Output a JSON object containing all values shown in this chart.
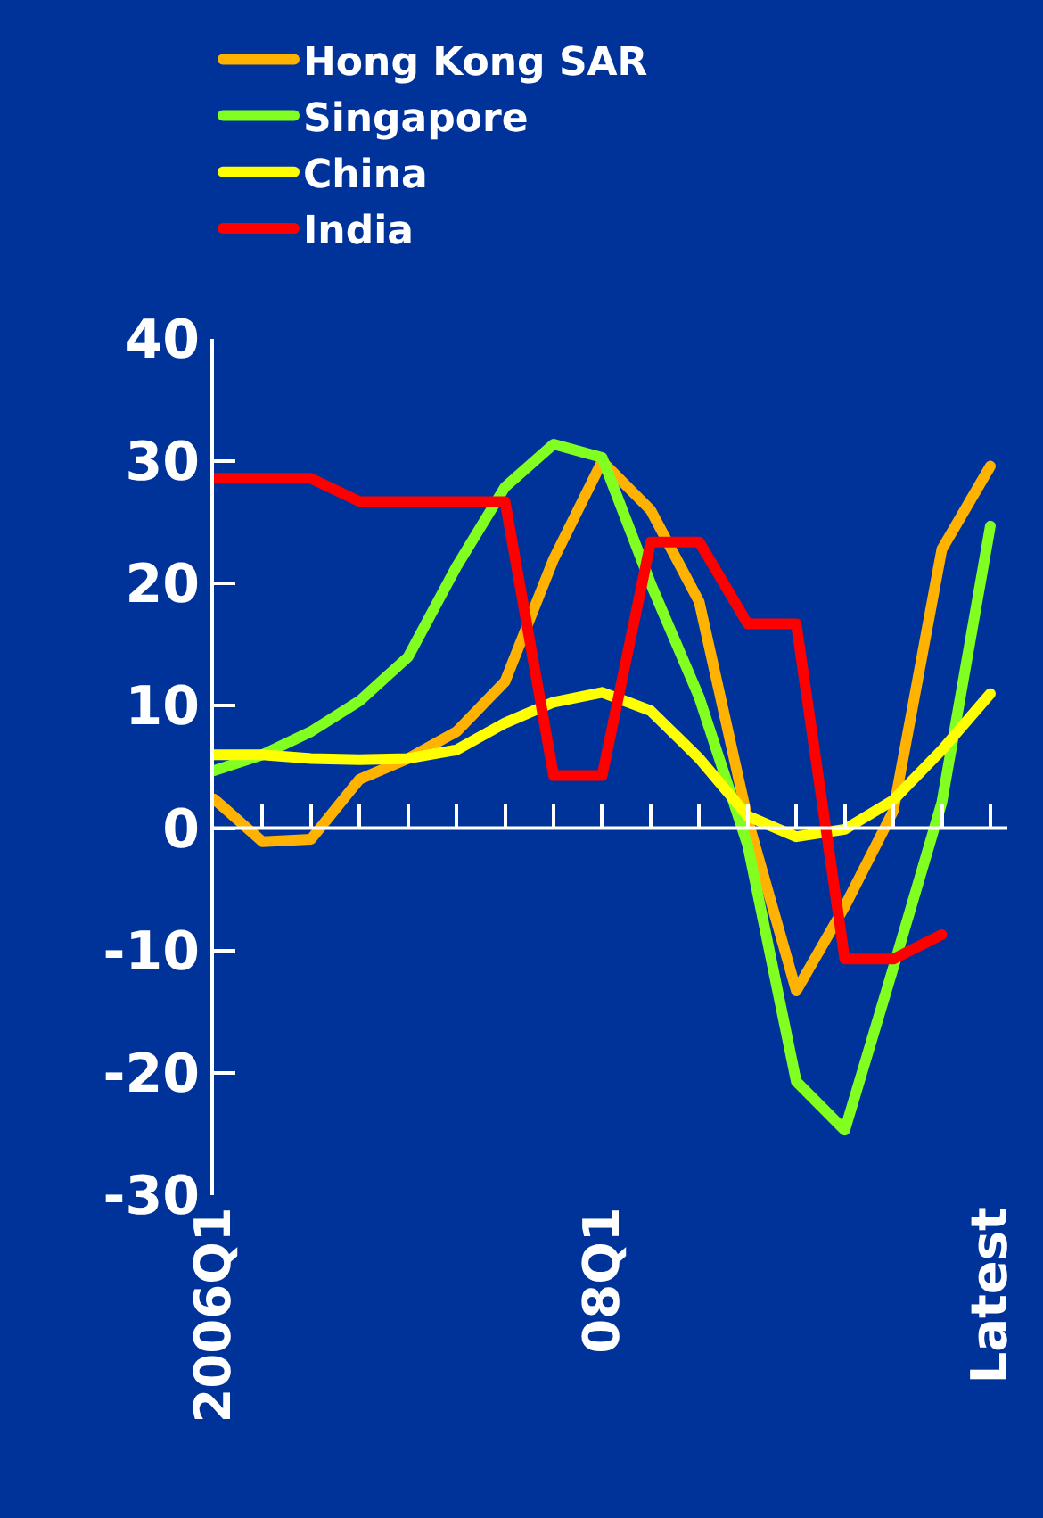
{
  "chart_data": {
    "type": "line",
    "categories": [
      "2006Q1",
      null,
      null,
      null,
      null,
      null,
      null,
      null,
      "08Q1",
      null,
      null,
      null,
      null,
      null,
      null,
      null,
      "Latest"
    ],
    "series": [
      {
        "name": "Hong Kong SAR",
        "color": "#ffb300",
        "values": [
          2.4,
          -1.1,
          -0.9,
          4,
          5.7,
          7.9,
          12,
          22,
          30,
          26,
          18.5,
          0.7,
          -13.3,
          -6.4,
          1.4,
          22.8,
          29.6
        ]
      },
      {
        "name": "Singapore",
        "color": "#80ff20",
        "values": [
          4.7,
          6,
          7.9,
          10.4,
          14,
          21.4,
          27.9,
          31.4,
          30.3,
          20,
          10.7,
          -1.4,
          -20.7,
          -24.7,
          -11.4,
          2.1,
          24.7
        ]
      },
      {
        "name": "China",
        "color": "#ffff00",
        "values": [
          6,
          6,
          5.7,
          5.6,
          5.7,
          6.4,
          8.6,
          10.3,
          11.1,
          9.6,
          5.7,
          1,
          -0.7,
          -0.1,
          2.3,
          6.4,
          11
        ]
      },
      {
        "name": "India",
        "color": "#ff0000",
        "values": [
          28.6,
          28.6,
          28.6,
          26.7,
          26.7,
          26.7,
          26.7,
          4.3,
          4.3,
          23.4,
          23.4,
          16.7,
          16.7,
          -10.7,
          -10.7,
          -8.7,
          null
        ]
      }
    ],
    "ylim": [
      -30,
      40
    ],
    "yticks": [
      -30,
      -20,
      -10,
      0,
      10,
      20,
      30,
      40
    ],
    "ref_lines": [
      {
        "axis": "y",
        "value": 0,
        "color": "#ffffff"
      }
    ],
    "grid": false,
    "legend": "top",
    "marker": "none",
    "line_style": "solid"
  }
}
